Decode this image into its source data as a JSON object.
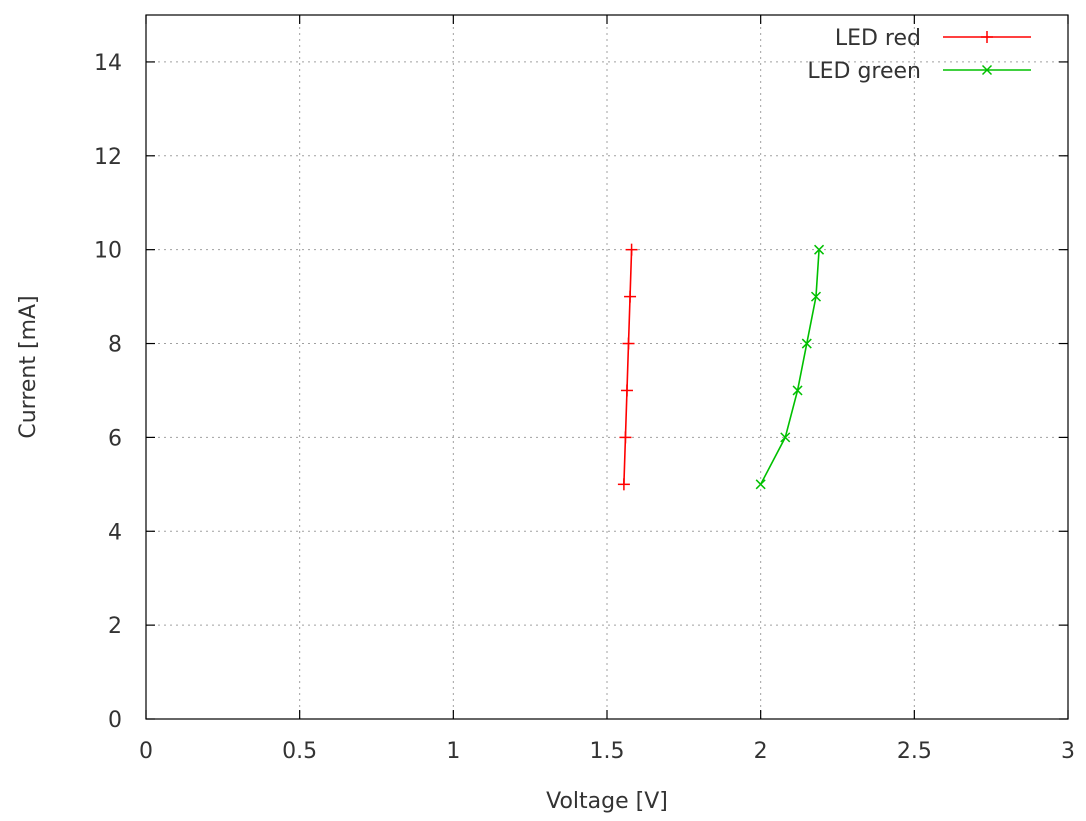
{
  "chart_data": {
    "type": "line",
    "title": "",
    "xlabel": "Voltage [V]",
    "ylabel": "Current [mA]",
    "xlim": [
      0,
      3
    ],
    "ylim": [
      0,
      15
    ],
    "xticks": [
      0,
      0.5,
      1,
      1.5,
      2,
      2.5,
      3
    ],
    "xtick_labels": [
      "0",
      "0.5",
      "1",
      "1.5",
      "2",
      "2.5",
      "3"
    ],
    "yticks": [
      0,
      2,
      4,
      6,
      8,
      10,
      12,
      14
    ],
    "ytick_labels": [
      "0",
      "2",
      "4",
      "6",
      "8",
      "10",
      "12",
      "14"
    ],
    "grid": true,
    "legend_position": "top-right",
    "series": [
      {
        "name": "LED red",
        "color": "#ff0000",
        "marker": "plus",
        "points": [
          {
            "x": 1.555,
            "y": 5
          },
          {
            "x": 1.56,
            "y": 6
          },
          {
            "x": 1.565,
            "y": 7
          },
          {
            "x": 1.57,
            "y": 8
          },
          {
            "x": 1.575,
            "y": 9
          },
          {
            "x": 1.58,
            "y": 10
          }
        ]
      },
      {
        "name": "LED green",
        "color": "#00c000",
        "marker": "cross",
        "points": [
          {
            "x": 2.0,
            "y": 5
          },
          {
            "x": 2.08,
            "y": 6
          },
          {
            "x": 2.12,
            "y": 7
          },
          {
            "x": 2.15,
            "y": 8
          },
          {
            "x": 2.18,
            "y": 9
          },
          {
            "x": 2.19,
            "y": 10
          }
        ]
      }
    ]
  }
}
